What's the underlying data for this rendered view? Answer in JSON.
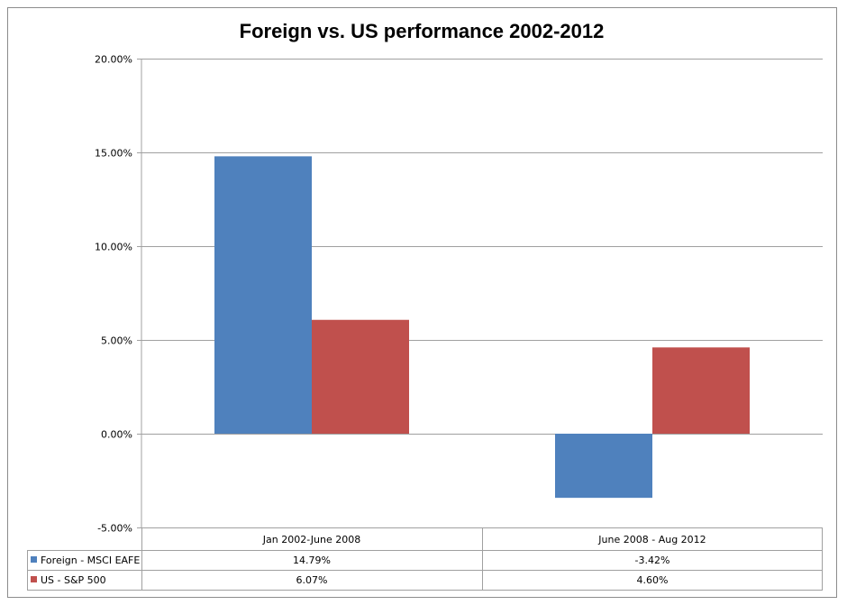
{
  "chart_data": {
    "type": "bar",
    "title": "Foreign vs. US performance 2002-2012",
    "categories": [
      "Jan 2002-June 2008",
      "June 2008 - Aug 2012"
    ],
    "series": [
      {
        "name": "Foreign - MSCI EAFE",
        "values": [
          14.79,
          -3.42
        ],
        "labels": [
          "14.79%",
          "-3.42%"
        ],
        "color": "#4f81bd"
      },
      {
        "name": "US - S&P 500",
        "values": [
          6.07,
          4.6
        ],
        "labels": [
          "6.07%",
          "4.60%"
        ],
        "color": "#c0504d"
      }
    ],
    "ylim": [
      -5,
      20
    ],
    "ytick_values": [
      20,
      15,
      10,
      5,
      0,
      -5
    ],
    "ytick_labels": [
      "20.00%",
      "15.00%",
      "10.00%",
      "5.00%",
      "0.00%",
      "-5.00%"
    ],
    "grid": true,
    "legend": "data-table"
  },
  "colors": {
    "gridline": "#a0a0a0",
    "table_border": "#a0a0a0"
  }
}
